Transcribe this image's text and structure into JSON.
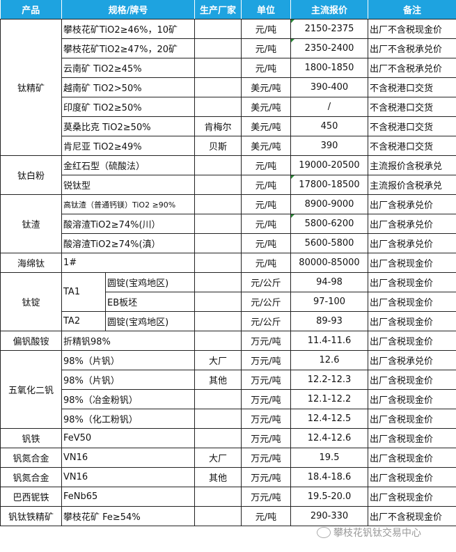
{
  "header": [
    "产品",
    "规格/牌号",
    "生产厂家",
    "单位",
    "主流报价",
    "备注"
  ],
  "colors": {
    "header_bg": "#1ea3e0",
    "corner_mark": "#2e8b3a"
  },
  "rows": [
    {
      "product": {
        "text": "钛精矿",
        "rowspan": 7
      },
      "spec": "攀枝花矿TiO2≥46%，10矿",
      "maker": "",
      "unit": "元/吨",
      "price": "2150-2375",
      "mark": true,
      "note": "出厂不含税现金价"
    },
    {
      "spec": "攀枝花矿TiO2≥47%，20矿",
      "maker": "",
      "unit": "元/吨",
      "price": "2350-2400",
      "mark": true,
      "note": "出厂不含税承兑价"
    },
    {
      "spec": "云南矿 TiO2≥45%",
      "maker": "",
      "unit": "元/吨",
      "price": "1800-1850",
      "note": "出厂不含税承兑价"
    },
    {
      "spec": "越南矿 TiO2>50%",
      "maker": "",
      "unit": "美元/吨",
      "price": "390-400",
      "note": "不含税港口交货"
    },
    {
      "spec": "印度矿 TiO2≥50%",
      "maker": "",
      "unit": "美元/吨",
      "price": "/",
      "note": "不含税港口交货"
    },
    {
      "spec": "莫桑比克 TiO2≥50%",
      "maker": "肯梅尔",
      "unit": "美元/吨",
      "price": "450",
      "note": "不含税港口交货"
    },
    {
      "spec": "肯尼亚 TiO2≥49%",
      "maker": "贝斯",
      "unit": "美元/吨",
      "price": "390",
      "note": "不含税港口交货"
    },
    {
      "product": {
        "text": "钛白粉",
        "rowspan": 2
      },
      "spec": "金红石型（硫酸法）",
      "maker": "",
      "unit": "元/吨",
      "price": "19000-20500",
      "note": "主流报价含税承兑"
    },
    {
      "spec": "锐钛型",
      "maker": "",
      "unit": "元/吨",
      "price": "17800-18500",
      "mark": true,
      "note": "主流报价含税承兑"
    },
    {
      "product": {
        "text": "钛渣",
        "rowspan": 3
      },
      "spec": "高钛渣（普通钙镁）TiO2 ≥90%",
      "small": true,
      "maker": "",
      "unit": "元/吨",
      "price": "8900-9000",
      "note": "出厂含税承兑价"
    },
    {
      "spec": "酸溶渣TiO2≥74%(川）",
      "maker": "",
      "unit": "元/吨",
      "price": "5800-6200",
      "mark": true,
      "note": "出厂含税承兑价"
    },
    {
      "spec": "酸溶渣TiO2≥74%(滇）",
      "maker": "",
      "unit": "元/吨",
      "price": "5600-5800",
      "note": "出厂含税承兑价"
    },
    {
      "product": {
        "text": "海绵钛",
        "rowspan": 1
      },
      "spec": "1#",
      "maker": "",
      "unit": "元/吨",
      "price": "80000-85000",
      "note": "出厂含税现金价"
    },
    {
      "product": {
        "text": "钛锭",
        "rowspan": 3
      },
      "grade": {
        "text": "TA1",
        "rowspan": 2
      },
      "spec": "圆锭(宝鸡地区)",
      "maker": "",
      "unit": "元/公斤",
      "price": "94-98",
      "note": "出厂含税现金价"
    },
    {
      "spec": "EB板坯",
      "maker": "",
      "unit": "元/公斤",
      "price": "97-100",
      "note": "出厂含税现金价",
      "sub": true
    },
    {
      "grade": {
        "text": "TA2",
        "rowspan": 1
      },
      "spec": "圆锭(宝鸡地区)",
      "maker": "",
      "unit": "元/公斤",
      "price": "89-93",
      "note": "出厂含税现金价"
    },
    {
      "product": {
        "text": "偏钒酸铵",
        "rowspan": 1
      },
      "spec": "折精钒98%",
      "maker": "",
      "unit": "万元/吨",
      "price": "11.4-11.6",
      "note": "出厂含税现金价"
    },
    {
      "product": {
        "text": "五氧化二钒",
        "rowspan": 4
      },
      "spec": "98%（片钒）",
      "maker": "大厂",
      "unit": "万元/吨",
      "price": "12.6",
      "note": "出厂含税承兑价"
    },
    {
      "spec": "98%（片钒）",
      "maker": "其他",
      "unit": "万元/吨",
      "price": "12.2-12.3",
      "note": "出厂含税现金价"
    },
    {
      "spec": "98%（冶金粉钒）",
      "maker": "",
      "unit": "万元/吨",
      "price": "12.1-12.2",
      "note": "出厂含税现金价"
    },
    {
      "spec": "98%（化工粉钒）",
      "maker": "",
      "unit": "万元/吨",
      "price": "12.4-12.5",
      "note": "出厂含税现金价"
    },
    {
      "product": {
        "text": "钒铁",
        "rowspan": 1
      },
      "spec": "FeV50",
      "maker": "",
      "unit": "万元/吨",
      "price": "12.4-12.6",
      "note": "出厂含税现金价"
    },
    {
      "product": {
        "text": "钒氮合金",
        "rowspan": 1
      },
      "spec": "VN16",
      "maker": "大厂",
      "unit": "万元/吨",
      "price": "19.5",
      "note": "出厂含税现金价"
    },
    {
      "product": {
        "text": "钒氮合金",
        "rowspan": 1
      },
      "spec": "VN16",
      "maker": "其他",
      "unit": "万元/吨",
      "price": "18.4-18.6",
      "note": "出厂含税现金价"
    },
    {
      "product": {
        "text": "巴西铌铁",
        "rowspan": 1
      },
      "spec": "FeNb65",
      "maker": "",
      "unit": "万元/吨",
      "price": "19.5-20.0",
      "note": "出厂含税现金价"
    },
    {
      "product": {
        "text": "钒钛铁精矿",
        "rowspan": 1
      },
      "spec": "攀枝花矿 Fe≥54%",
      "maker": "",
      "unit": "元/吨",
      "price": "290-330",
      "note": "出厂不含税现金价"
    }
  ],
  "watermark": "攀枝花钒钛交易中心"
}
